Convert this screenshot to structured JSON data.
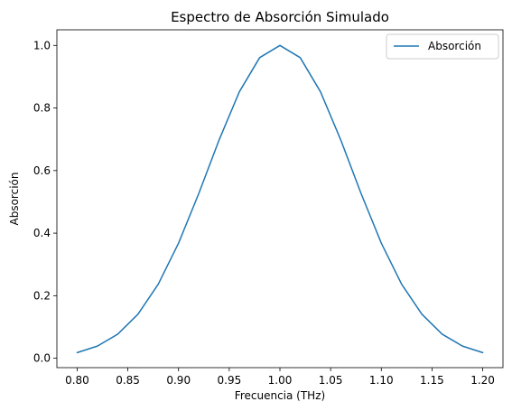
{
  "chart_data": {
    "type": "line",
    "title": "Espectro de Absorción Simulado",
    "xlabel": "Frecuencia (THz)",
    "ylabel": "Absorción",
    "xlim": [
      0.78,
      1.22
    ],
    "ylim": [
      -0.03,
      1.05
    ],
    "xticks": [
      0.8,
      0.85,
      0.9,
      0.95,
      1.0,
      1.05,
      1.1,
      1.15,
      1.2
    ],
    "xtick_labels": [
      "0.80",
      "0.85",
      "0.90",
      "0.95",
      "1.00",
      "1.05",
      "1.10",
      "1.15",
      "1.20"
    ],
    "yticks": [
      0.0,
      0.2,
      0.4,
      0.6,
      0.8,
      1.0
    ],
    "ytick_labels": [
      "0.0",
      "0.2",
      "0.4",
      "0.6",
      "0.8",
      "1.0"
    ],
    "grid": false,
    "legend": {
      "position": "top-right",
      "entries": [
        {
          "label": "Absorción",
          "color": "#1f77b4"
        }
      ]
    },
    "series": [
      {
        "name": "Absorción",
        "color": "#1f77b4",
        "x": [
          0.8,
          0.82,
          0.84,
          0.86,
          0.88,
          0.9,
          0.92,
          0.94,
          0.96,
          0.98,
          1.0,
          1.02,
          1.04,
          1.06,
          1.08,
          1.1,
          1.12,
          1.14,
          1.16,
          1.18,
          1.2
        ],
        "y": [
          0.018,
          0.039,
          0.077,
          0.141,
          0.237,
          0.368,
          0.527,
          0.698,
          0.852,
          0.961,
          1.0,
          0.961,
          0.852,
          0.698,
          0.527,
          0.368,
          0.237,
          0.141,
          0.077,
          0.039,
          0.018
        ]
      }
    ]
  }
}
